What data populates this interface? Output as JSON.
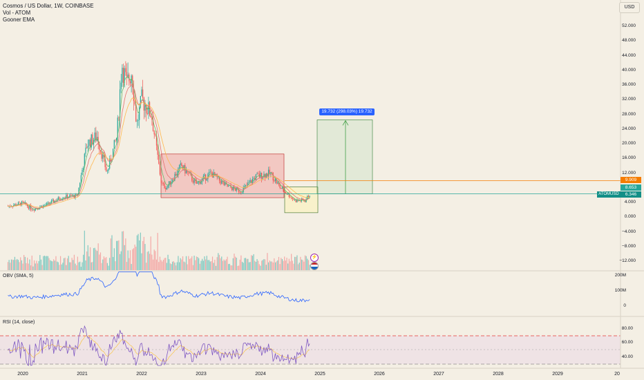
{
  "legend": {
    "title": "Cosmos / US Dollar, 1W, COINBASE",
    "indicators": [
      "Vol - ATOM",
      "Gooner EMA"
    ]
  },
  "currency_button": "USD",
  "panes": {
    "obv_label": "OBV (SMA, 5)",
    "rsi_label": "RSI (14, close)"
  },
  "price_axis": [
    "52.000",
    "48.000",
    "44.000",
    "40.000",
    "36.000",
    "32.000",
    "28.000",
    "24.000",
    "20.000",
    "16.000",
    "12.000",
    "8.000",
    "4.000",
    "0.000",
    "−4.000",
    "−8.000",
    "−12.000"
  ],
  "obv_axis": [
    "200M",
    "100M",
    "0"
  ],
  "rsi_axis": [
    "80.00",
    "60.00",
    "40.00"
  ],
  "time_axis": [
    "2020",
    "2021",
    "2022",
    "2023",
    "2024",
    "2025",
    "2026",
    "2027",
    "2028",
    "2029",
    "20"
  ],
  "price_tags": {
    "orange": "9.909",
    "teal_upper": "8.653",
    "symbol": "ATOMUSD",
    "current": "6.346"
  },
  "measure_tooltip": "19.732 (298.03%) 19.732",
  "colors": {
    "background": "#f4efe4",
    "up": "#26a69a",
    "down": "#ef5350",
    "orange_line": "#f57c00",
    "teal_line": "#26a69a",
    "obv_line": "#2962ff",
    "rsi_line": "#7e57c2",
    "range_box": "#ef9a9a",
    "target_box": "#4caf50"
  },
  "icons": [
    "lightning-icon",
    "flag-us-icon"
  ],
  "chart_data": {
    "type": "candlestick",
    "symbol": "ATOMUSD",
    "timeframe": "1W",
    "y_range": [
      -12,
      52
    ],
    "close_series": [
      {
        "x": "2019-10",
        "y": 3.0
      },
      {
        "x": "2020-01",
        "y": 3.8
      },
      {
        "x": "2020-03",
        "y": 2.2
      },
      {
        "x": "2020-06",
        "y": 3.5
      },
      {
        "x": "2020-09",
        "y": 5.5
      },
      {
        "x": "2020-12",
        "y": 5.8
      },
      {
        "x": "2021-02",
        "y": 20
      },
      {
        "x": "2021-04",
        "y": 22
      },
      {
        "x": "2021-06",
        "y": 12
      },
      {
        "x": "2021-08",
        "y": 22
      },
      {
        "x": "2021-09",
        "y": 42
      },
      {
        "x": "2021-10",
        "y": 36
      },
      {
        "x": "2021-11",
        "y": 40
      },
      {
        "x": "2021-12",
        "y": 25
      },
      {
        "x": "2022-01",
        "y": 32
      },
      {
        "x": "2022-03",
        "y": 28
      },
      {
        "x": "2022-05",
        "y": 9
      },
      {
        "x": "2022-06",
        "y": 8
      },
      {
        "x": "2022-09",
        "y": 14
      },
      {
        "x": "2022-12",
        "y": 9
      },
      {
        "x": "2023-03",
        "y": 12
      },
      {
        "x": "2023-06",
        "y": 8.5
      },
      {
        "x": "2023-09",
        "y": 7
      },
      {
        "x": "2023-12",
        "y": 11
      },
      {
        "x": "2024-03",
        "y": 12
      },
      {
        "x": "2024-05",
        "y": 8
      },
      {
        "x": "2024-08",
        "y": 4.5
      },
      {
        "x": "2024-10",
        "y": 4.5
      },
      {
        "x": "2024-11",
        "y": 6.346
      }
    ],
    "horizontal_levels": [
      9.909,
      6.346
    ],
    "obv_range": [
      0,
      200
    ],
    "rsi_range": [
      30,
      90
    ],
    "rsi_levels": [
      70,
      50,
      30
    ]
  }
}
